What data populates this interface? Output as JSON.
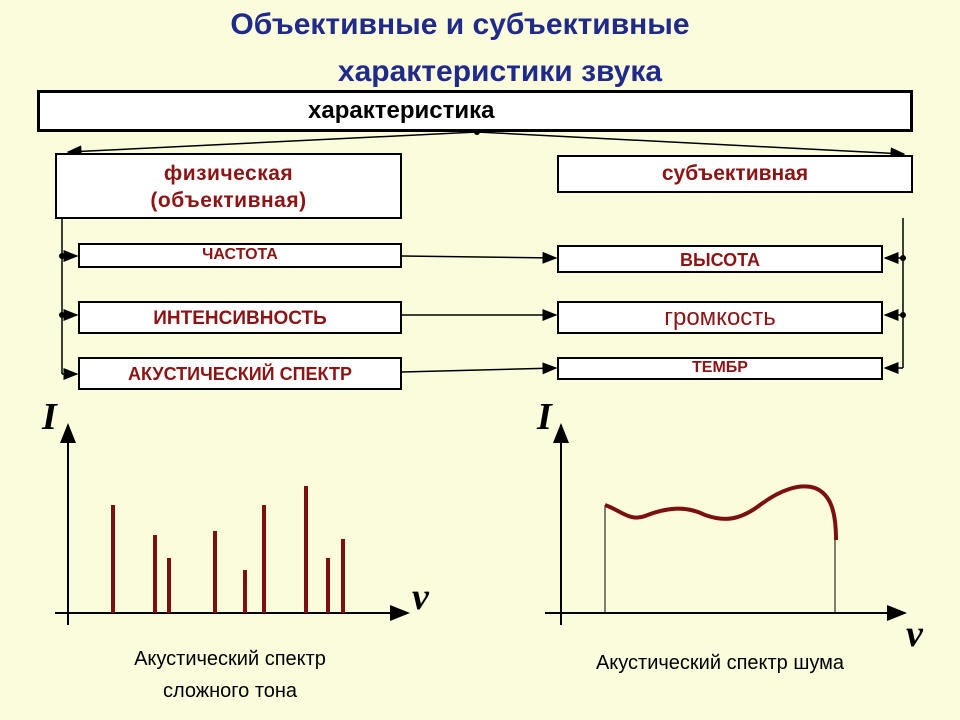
{
  "title": {
    "line1": "Объективные и субъективные",
    "line2": "характеристики звука"
  },
  "diagram": {
    "root": "характеристика",
    "physical": {
      "line1": "физическая",
      "line2": "(объективная)"
    },
    "subjective": "субъективная",
    "pairs": [
      {
        "physical": "ЧАСТОТА",
        "subjective": "ВЫСОТА"
      },
      {
        "physical": "ИНТЕНСИВНОСТЬ",
        "subjective": "громкость"
      },
      {
        "physical": "АКУСТИЧЕСКИЙ СПЕКТР",
        "subjective": "ТЕМБР"
      }
    ]
  },
  "graphs": {
    "left": {
      "y_axis": "I",
      "x_axis": "ν",
      "caption_line1": "Акустический спектр",
      "caption_line2": "сложного тона"
    },
    "right": {
      "y_axis": "I",
      "x_axis": "ν",
      "caption": "Акустический спектр шума"
    }
  },
  "colors": {
    "title": "#1f2a8a",
    "label": "#8b1414",
    "spectrum": "#7a1010",
    "background": "#fbfcdc"
  }
}
